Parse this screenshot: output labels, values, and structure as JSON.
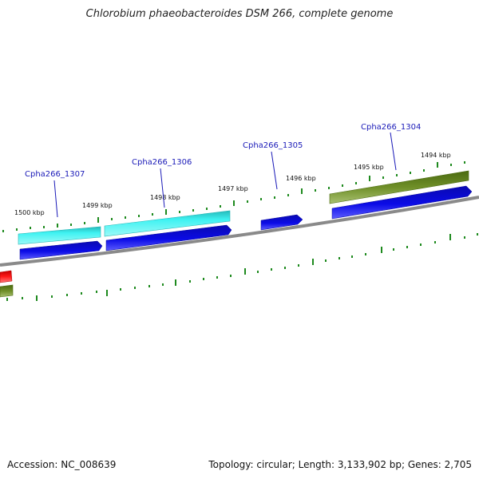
{
  "title": "Chlorobium phaeobacteroides DSM 266, complete genome",
  "footer": {
    "accession": "Accession: NC_008639",
    "summary": "Topology: circular; Length: 3,133,902 bp; Genes: 2,705"
  },
  "scale_labels": [
    "1500 kbp",
    "1499 kbp",
    "1498 kbp",
    "1497 kbp",
    "1496 kbp",
    "1495 kbp",
    "1494 kbp"
  ],
  "gene_labels": [
    "Cpha266_1307",
    "Cpha266_1306",
    "Cpha266_1305",
    "Cpha266_1304"
  ],
  "colors": {
    "backbone": "#8a8a8a",
    "tick": "#1e8a1e",
    "cds": "#0a0ad6",
    "gene_cyan": "#20e6e6",
    "gene_olive": "#6b8c23",
    "gene_red": "#ee1111",
    "label": "#1a1ab8"
  }
}
